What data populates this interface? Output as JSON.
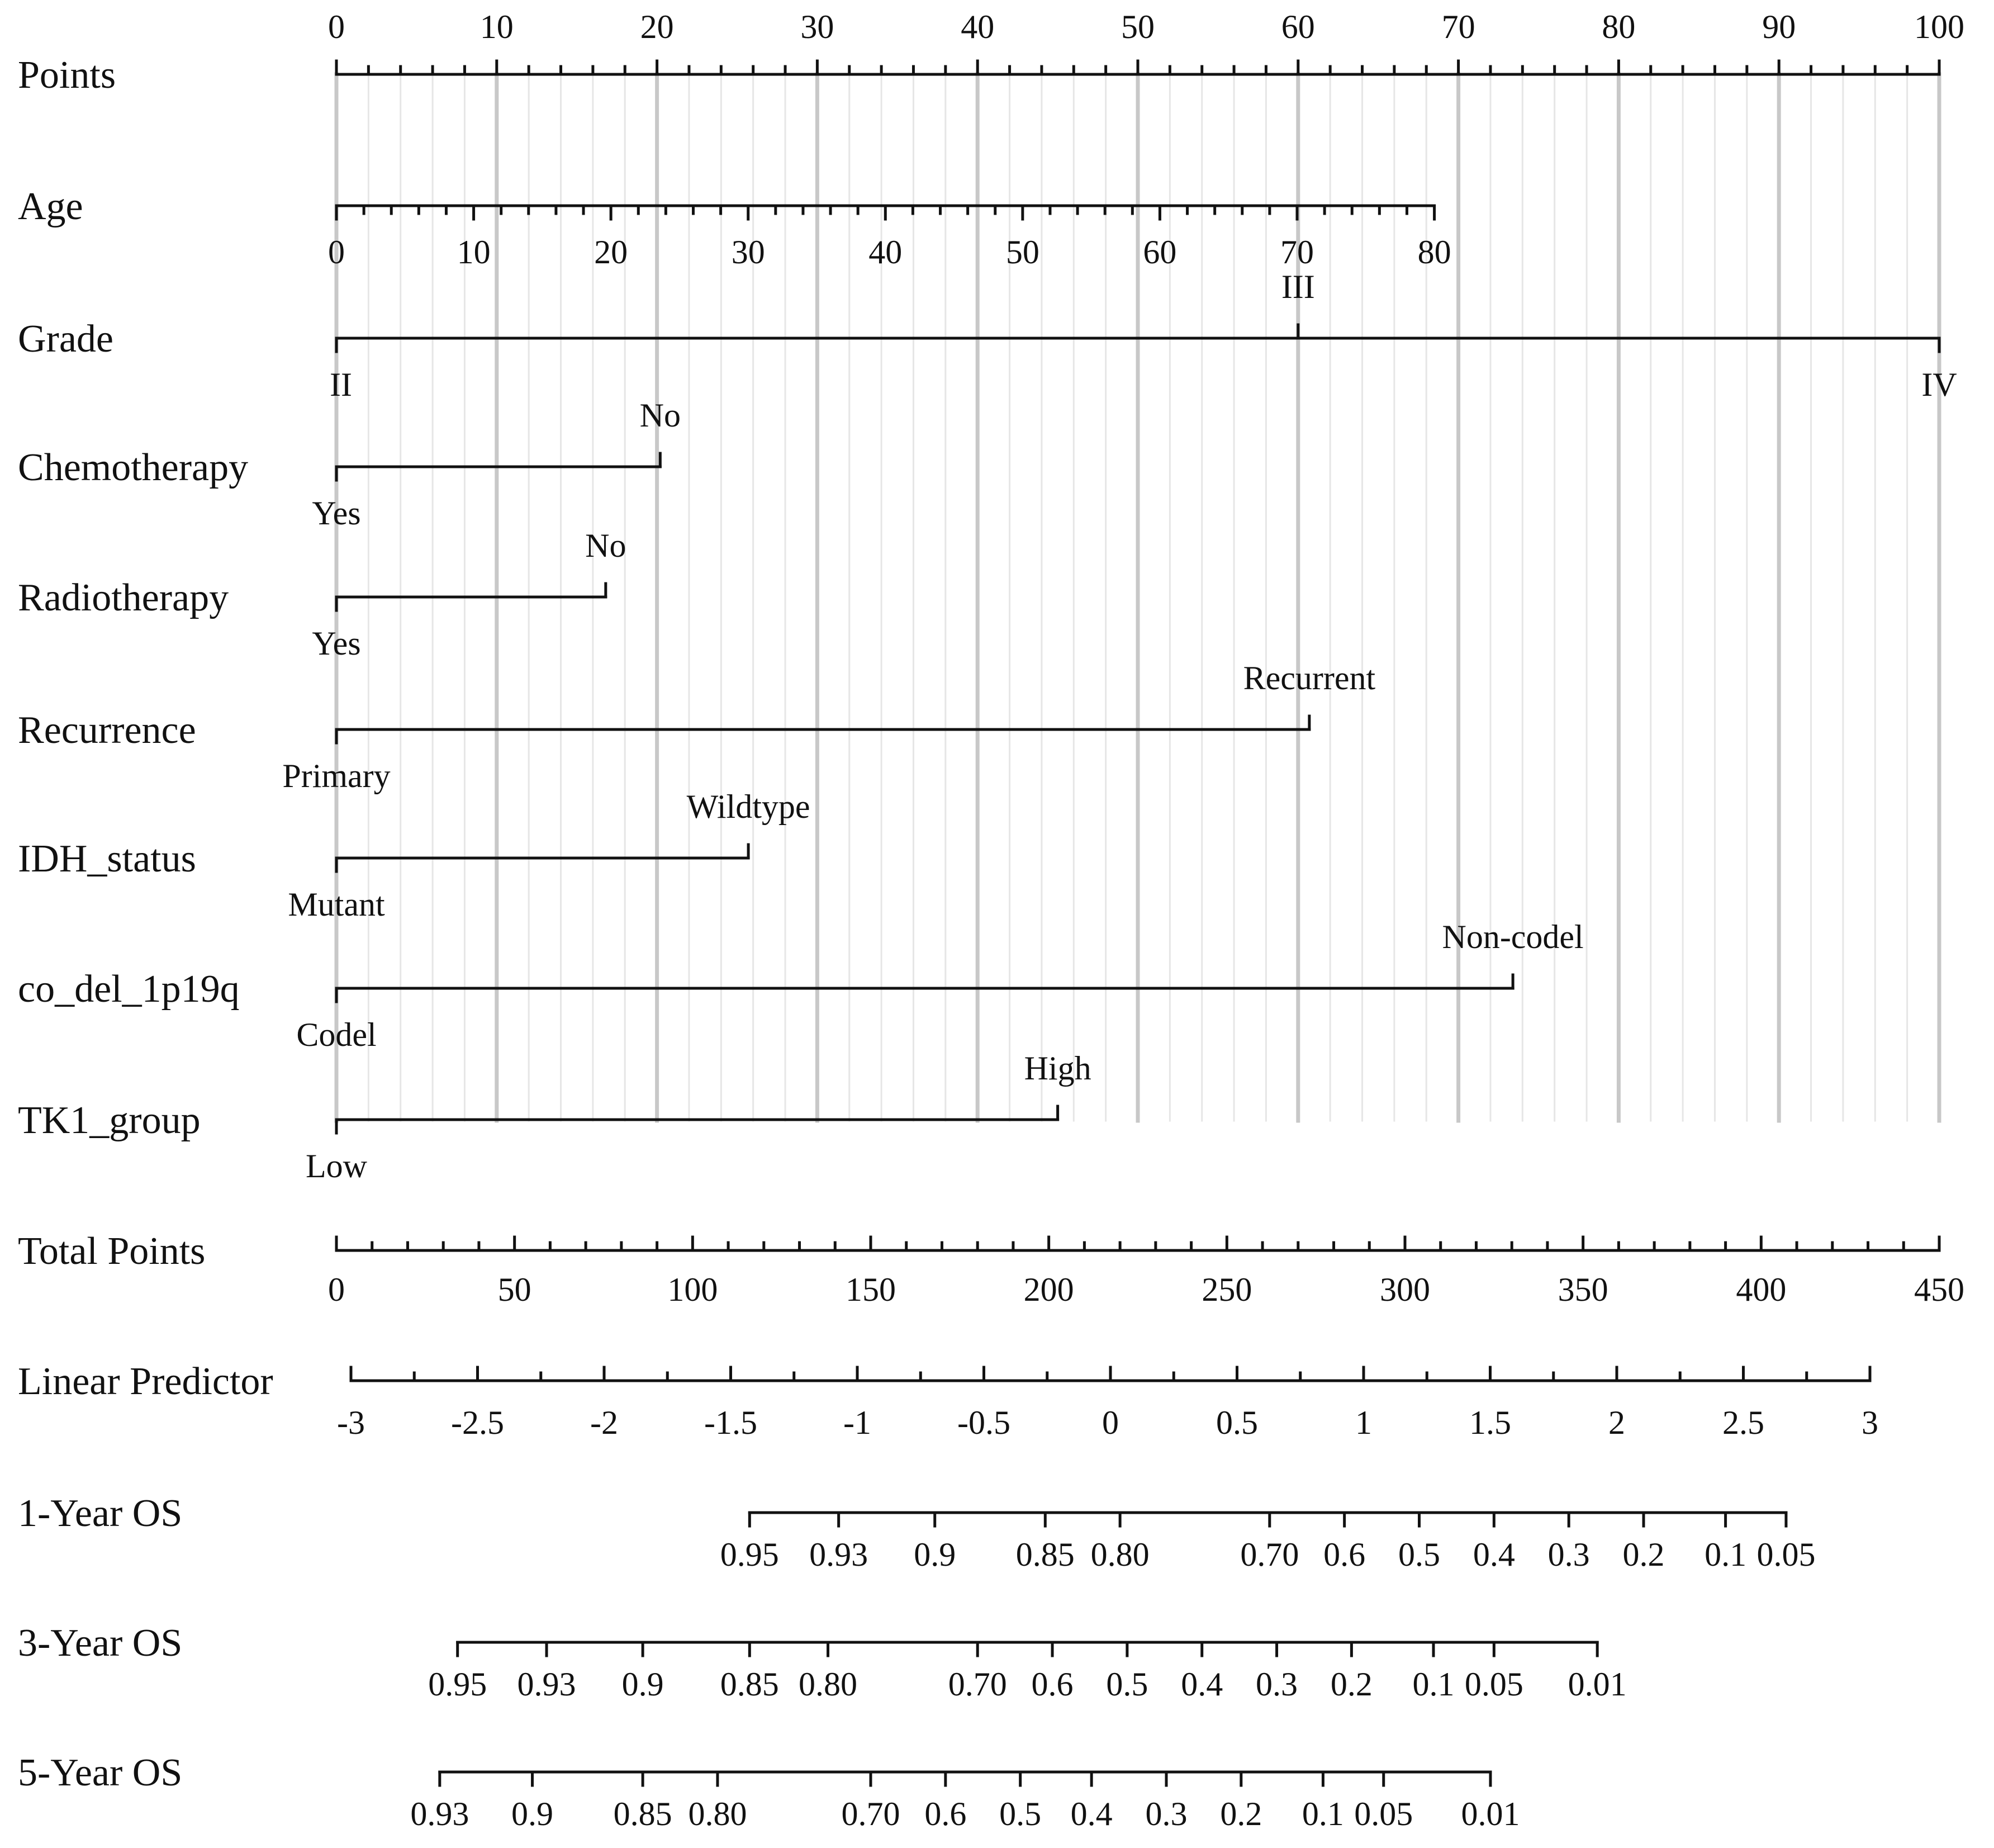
{
  "chart_data": {
    "type": "nomogram",
    "title": "",
    "scales": [
      {
        "id": "points",
        "label": "Points",
        "kind": "continuous",
        "range": [
          0,
          100
        ],
        "labels": [
          "0",
          "10",
          "20",
          "30",
          "40",
          "50",
          "60",
          "70",
          "80",
          "90",
          "100"
        ]
      },
      {
        "id": "age",
        "label": "Age",
        "kind": "continuous",
        "range": [
          0,
          80
        ],
        "labels": [
          "0",
          "10",
          "20",
          "30",
          "40",
          "50",
          "60",
          "70",
          "80"
        ]
      },
      {
        "id": "grade",
        "label": "Grade",
        "kind": "categorical",
        "categories": [
          {
            "label": "II",
            "points": 0
          },
          {
            "label": "III",
            "points": 60
          },
          {
            "label": "IV",
            "points": 100
          }
        ]
      },
      {
        "id": "chemotherapy",
        "label": "Chemotherapy",
        "kind": "categorical",
        "categories": [
          {
            "label": "Yes",
            "points": 0
          },
          {
            "label": "No",
            "points": 20.2
          }
        ]
      },
      {
        "id": "radiotherapy",
        "label": "Radiotherapy",
        "kind": "categorical",
        "categories": [
          {
            "label": "Yes",
            "points": 0
          },
          {
            "label": "No",
            "points": 16.8
          }
        ]
      },
      {
        "id": "recurrence",
        "label": "Recurrence",
        "kind": "categorical",
        "categories": [
          {
            "label": "Primary",
            "points": 0
          },
          {
            "label": "Recurrent",
            "points": 60.7
          }
        ]
      },
      {
        "id": "idh",
        "label": "IDH_status",
        "kind": "categorical",
        "categories": [
          {
            "label": "Mutant",
            "points": 0
          },
          {
            "label": "Wildtype",
            "points": 25.7
          }
        ]
      },
      {
        "id": "codel",
        "label": "co_del_1p19q",
        "kind": "categorical",
        "categories": [
          {
            "label": "Codel",
            "points": 0
          },
          {
            "label": "Non-codel",
            "points": 73.4
          }
        ]
      },
      {
        "id": "tk1",
        "label": "TK1_group",
        "kind": "categorical",
        "categories": [
          {
            "label": "Low",
            "points": 0
          },
          {
            "label": "High",
            "points": 45
          }
        ]
      },
      {
        "id": "total",
        "label": "Total Points",
        "kind": "continuous",
        "range": [
          0,
          450
        ],
        "labels": [
          "0",
          "50",
          "100",
          "150",
          "200",
          "250",
          "300",
          "350",
          "400",
          "450"
        ]
      },
      {
        "id": "lp",
        "label": "Linear Predictor",
        "kind": "continuous",
        "range": [
          -3,
          3
        ],
        "labels": [
          "-3",
          "-2.5",
          "-2",
          "-1.5",
          "-1",
          "-0.5",
          "0",
          "0.5",
          "1",
          "1.5",
          "2",
          "2.5",
          "3"
        ]
      },
      {
        "id": "os1",
        "label": "1-Year OS",
        "kind": "survival",
        "labels": [
          "0.95",
          "0.93",
          "0.9",
          "0.85",
          "0.80",
          "0.70",
          "0.6",
          "0.5",
          "0.4",
          "0.3",
          "0.2",
          "0.1",
          "0.05"
        ],
        "total_points": [
          116,
          141,
          168,
          199,
          220,
          262,
          283,
          304,
          325,
          346,
          367,
          390,
          407
        ]
      },
      {
        "id": "os3",
        "label": "3-Year OS",
        "kind": "survival",
        "labels": [
          "0.95",
          "0.93",
          "0.9",
          "0.85",
          "0.80",
          "0.70",
          "0.6",
          "0.5",
          "0.4",
          "0.3",
          "0.2",
          "0.1",
          "0.05",
          "0.01"
        ],
        "total_points": [
          34,
          59,
          86,
          116,
          138,
          180,
          201,
          222,
          243,
          264,
          285,
          308,
          325,
          354
        ]
      },
      {
        "id": "os5",
        "label": "5-Year OS",
        "kind": "survival",
        "labels": [
          "0.93",
          "0.9",
          "0.85",
          "0.80",
          "0.70",
          "0.6",
          "0.5",
          "0.4",
          "0.3",
          "0.2",
          "0.1",
          "0.05",
          "0.01"
        ],
        "total_points": [
          29,
          55,
          86,
          107,
          150,
          171,
          192,
          212,
          233,
          254,
          277,
          294,
          324
        ]
      }
    ]
  }
}
